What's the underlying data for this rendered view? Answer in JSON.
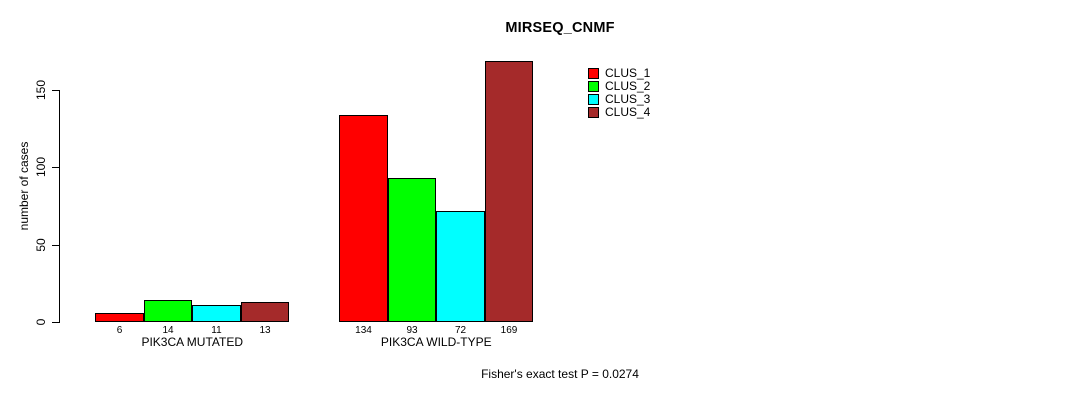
{
  "title": "MIRSEQ_CNMF",
  "y_axis": {
    "label": "number of cases",
    "ticks": [
      0,
      50,
      100,
      150
    ]
  },
  "footer": "Fisher's exact test P = 0.0274",
  "colors": {
    "background": "#FFFFFF",
    "axis": "#000000",
    "text": "#000000"
  },
  "chart_data": {
    "type": "bar",
    "title": "MIRSEQ_CNMF",
    "xlabel": "",
    "ylabel": "number of cases",
    "ylim": [
      0,
      169
    ],
    "yticks": [
      0,
      50,
      100,
      150
    ],
    "grid": false,
    "categories": [
      "PIK3CA MUTATED",
      "PIK3CA WILD-TYPE"
    ],
    "series": [
      {
        "name": "CLUS_1",
        "color": "#FF0000",
        "values": [
          6,
          134
        ]
      },
      {
        "name": "CLUS_2",
        "color": "#00FF00",
        "values": [
          14,
          93
        ]
      },
      {
        "name": "CLUS_3",
        "color": "#00FFFF",
        "values": [
          11,
          72
        ]
      },
      {
        "name": "CLUS_4",
        "color": "#A52A2A",
        "values": [
          13,
          169
        ]
      }
    ],
    "bar_value_labels": [
      [
        6,
        14,
        11,
        13
      ],
      [
        134,
        93,
        72,
        169
      ]
    ],
    "legend_position": "top-right",
    "annotation": "Fisher's exact test P = 0.0274"
  }
}
